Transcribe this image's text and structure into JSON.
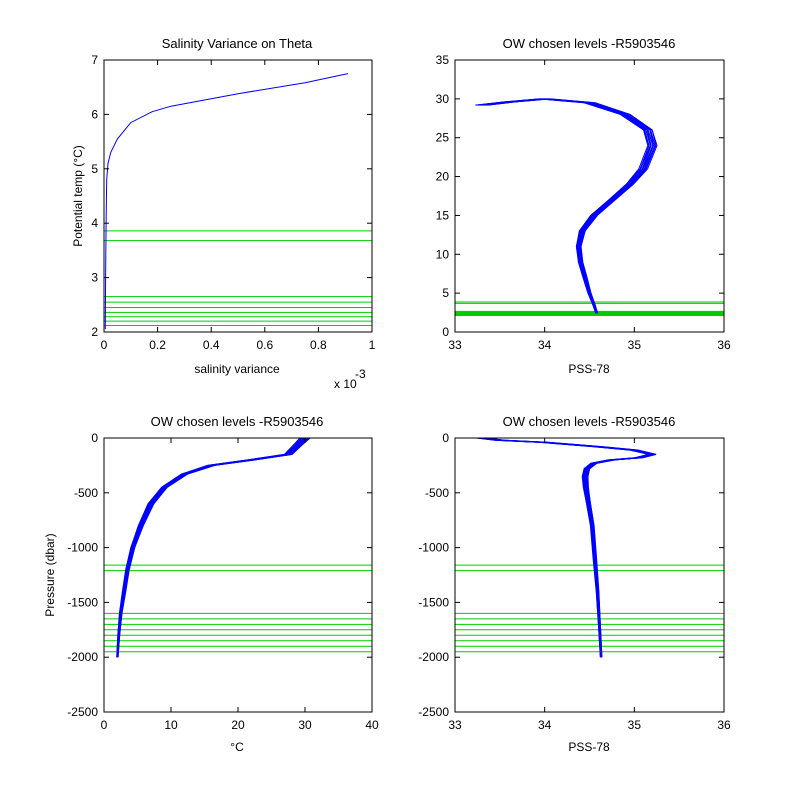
{
  "figure": {
    "background": "#ffffff"
  },
  "chart_data": [
    {
      "type": "line",
      "title": "Salinity Variance on Theta",
      "xlabel": "salinity variance",
      "ylabel": "Potential temp (°C)",
      "x_exponent_label": "x 10",
      "x_exponent_power": "-3",
      "xlim": [
        0,
        1
      ],
      "ylim": [
        2,
        7
      ],
      "xticks": [
        0,
        0.2,
        0.4,
        0.6,
        0.8,
        1
      ],
      "xtick_labels": [
        "0",
        "0.2",
        "0.4",
        "0.6",
        "0.8",
        "1"
      ],
      "yticks": [
        2,
        3,
        4,
        5,
        6,
        7
      ],
      "ytick_labels": [
        "2",
        "3",
        "4",
        "5",
        "6",
        "7"
      ],
      "grid": false,
      "series": [
        {
          "color": "#0000ff",
          "x": [
            0.005,
            0.006,
            0.008,
            0.01,
            0.015,
            0.025,
            0.05,
            0.1,
            0.18,
            0.25,
            0.5,
            0.75,
            0.91
          ],
          "y": [
            2.05,
            3.0,
            4.0,
            4.8,
            5.1,
            5.3,
            5.55,
            5.85,
            6.05,
            6.15,
            6.38,
            6.58,
            6.75
          ]
        }
      ],
      "hlines": {
        "color": "#00cc00",
        "values": [
          3.68,
          3.86,
          2.12,
          2.2,
          2.28,
          2.36,
          2.45,
          2.55,
          2.65
        ]
      }
    },
    {
      "type": "line",
      "title": "OW chosen levels -R5903546",
      "xlabel": "PSS-78",
      "ylabel": "",
      "xlim": [
        33,
        36
      ],
      "ylim": [
        0,
        35
      ],
      "xticks": [
        33,
        34,
        35,
        36
      ],
      "xtick_labels": [
        "33",
        "34",
        "35",
        "36"
      ],
      "yticks": [
        0,
        5,
        10,
        15,
        20,
        25,
        30,
        35
      ],
      "ytick_labels": [
        "0",
        "5",
        "10",
        "15",
        "20",
        "25",
        "30",
        "35"
      ],
      "grid": false,
      "series": [
        {
          "color": "#0000ff",
          "x": [
            34.58,
            34.55,
            34.5,
            34.45,
            34.4,
            34.38,
            34.42,
            34.55,
            34.75,
            34.95,
            35.1,
            35.2,
            35.15,
            34.9,
            34.5,
            34.0,
            33.6,
            33.3
          ],
          "y": [
            2.4,
            3.5,
            5.0,
            7.0,
            9.0,
            11.0,
            13.0,
            15.0,
            17.0,
            19.0,
            21.0,
            24.0,
            26.0,
            28.0,
            29.5,
            30.0,
            29.6,
            29.2
          ]
        }
      ],
      "band_spread": 0.14,
      "hlines": {
        "color": "#00cc00",
        "values": [
          3.68,
          3.86,
          2.12,
          2.2,
          2.28,
          2.36,
          2.45,
          2.55,
          2.65
        ]
      }
    },
    {
      "type": "line",
      "title": "OW chosen levels -R5903546",
      "xlabel": "°C",
      "ylabel": "Pressure (dbar)",
      "xlim": [
        0,
        40
      ],
      "ylim": [
        -2500,
        0
      ],
      "xticks": [
        0,
        10,
        20,
        30,
        40
      ],
      "xtick_labels": [
        "0",
        "10",
        "20",
        "30",
        "40"
      ],
      "yticks": [
        -2500,
        -2000,
        -1500,
        -1000,
        -500,
        0
      ],
      "ytick_labels": [
        "-2500",
        "-2000",
        "-1500",
        "-1000",
        "-500",
        "0"
      ],
      "grid": false,
      "series": [
        {
          "color": "#0000ff",
          "x": [
            2.0,
            2.2,
            2.5,
            3.0,
            3.5,
            4.3,
            5.5,
            7.0,
            9.0,
            12.0,
            16.0,
            22.0,
            27.5,
            29.0,
            30.0
          ],
          "y": [
            -2000,
            -1800,
            -1600,
            -1400,
            -1200,
            -1000,
            -800,
            -600,
            -450,
            -330,
            -250,
            -200,
            -150,
            -60,
            0
          ]
        }
      ],
      "band_spread": 1.4,
      "hlines": {
        "color": "#00cc00",
        "values": [
          -1160,
          -1210,
          -1600,
          -1650,
          -1700,
          -1750,
          -1800,
          -1850,
          -1900,
          -1950
        ]
      }
    },
    {
      "type": "line",
      "title": "OW chosen levels -R5903546",
      "xlabel": "PSS-78",
      "ylabel": "",
      "xlim": [
        33,
        36
      ],
      "ylim": [
        -2500,
        0
      ],
      "xticks": [
        33,
        34,
        35,
        36
      ],
      "xtick_labels": [
        "33",
        "34",
        "35",
        "36"
      ],
      "yticks": [
        -2500,
        -2000,
        -1500,
        -1000,
        -500,
        0
      ],
      "ytick_labels": [
        "-2500",
        "-2000",
        "-1500",
        "-1000",
        "-500",
        "0"
      ],
      "grid": false,
      "series": [
        {
          "color": "#0000ff",
          "x": [
            34.63,
            34.61,
            34.59,
            34.56,
            34.53,
            34.49,
            34.46,
            34.45,
            34.47,
            34.55,
            34.75,
            35.05,
            35.2,
            35.0,
            34.6,
            34.0,
            33.5,
            33.3
          ],
          "y": [
            -2000,
            -1700,
            -1400,
            -1100,
            -800,
            -600,
            -450,
            -350,
            -280,
            -230,
            -200,
            -180,
            -150,
            -110,
            -80,
            -40,
            -20,
            0
          ]
        }
      ],
      "band_spread": 0.12,
      "hlines": {
        "color": "#00cc00",
        "values": [
          -1160,
          -1210,
          -1600,
          -1650,
          -1700,
          -1750,
          -1800,
          -1850,
          -1900,
          -1950
        ]
      }
    }
  ]
}
